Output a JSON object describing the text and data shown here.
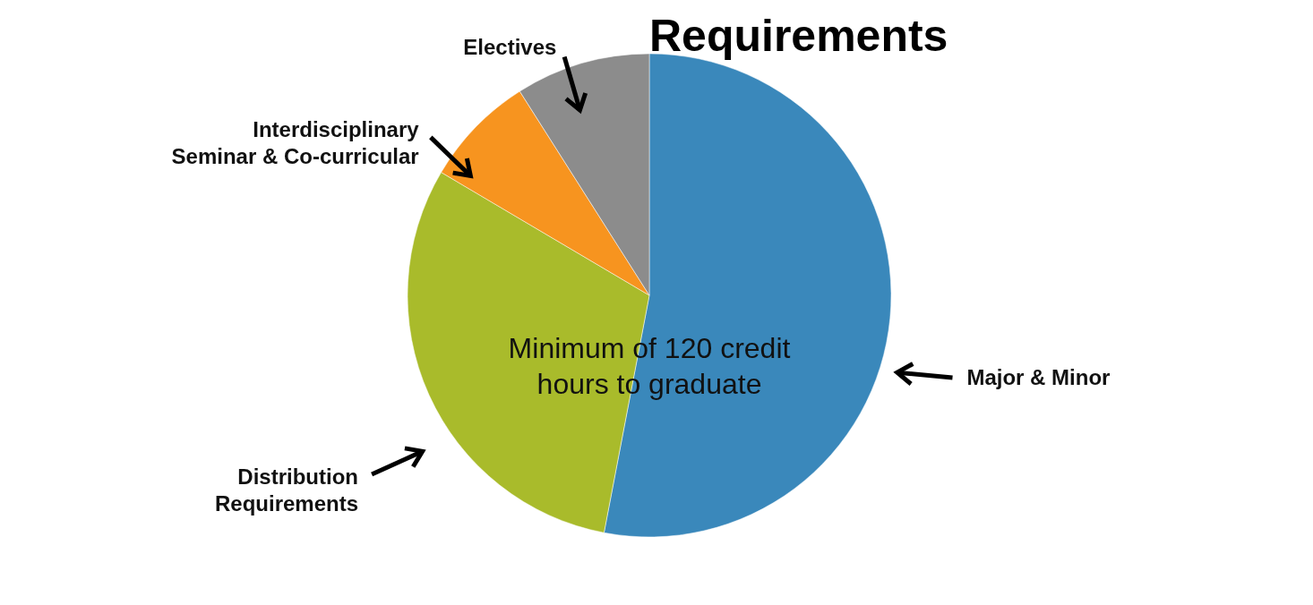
{
  "chart_data": {
    "type": "pie",
    "title": "Requirements",
    "categories": [
      "Major & Minor",
      "Distribution Requirements",
      "Interdisciplinary Seminar & Co-curricular",
      "Electives"
    ],
    "values": [
      53,
      30.5,
      7.5,
      9
    ],
    "colors": [
      "#3a88bb",
      "#a9bb2b",
      "#f7941f",
      "#8c8c8c"
    ],
    "annotations": [
      "Minimum of 120 credit hours to graduate"
    ]
  }
}
